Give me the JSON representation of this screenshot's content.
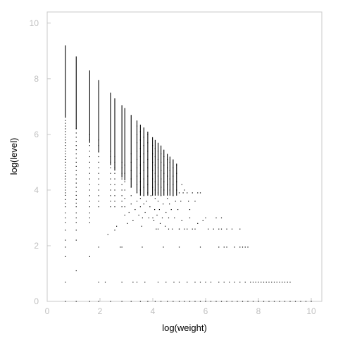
{
  "chart_data": {
    "type": "scatter",
    "title": "",
    "xlabel": "log(weight)",
    "ylabel": "log(level)",
    "xlim": [
      0,
      10.4
    ],
    "ylim": [
      0,
      10.4
    ],
    "xticks": [
      "0",
      "2",
      "4",
      "6",
      "8",
      "10"
    ],
    "yticks": [
      "0",
      "2",
      "4",
      "6",
      "8",
      "10"
    ],
    "grid": false,
    "legend": "none",
    "point_color": "#000000",
    "axis_color": "#c8c8c8",
    "tick_label_color": "#c0c0c0",
    "columns": [
      {
        "x": 0.69,
        "ymax": 9.2
      },
      {
        "x": 1.1,
        "ymax": 8.8
      },
      {
        "x": 1.61,
        "ymax": 8.3
      },
      {
        "x": 1.95,
        "ymax": 7.95
      },
      {
        "x": 2.4,
        "ymax": 7.5
      },
      {
        "x": 2.56,
        "ymax": 7.3
      },
      {
        "x": 2.83,
        "ymax": 7.05
      },
      {
        "x": 2.94,
        "ymax": 6.95
      },
      {
        "x": 3.18,
        "ymax": 6.7
      },
      {
        "x": 3.4,
        "ymax": 6.5
      },
      {
        "x": 3.53,
        "ymax": 6.35
      },
      {
        "x": 3.66,
        "ymax": 6.25
      },
      {
        "x": 3.81,
        "ymax": 6.1
      },
      {
        "x": 3.99,
        "ymax": 5.9
      },
      {
        "x": 4.09,
        "ymax": 5.8
      },
      {
        "x": 4.2,
        "ymax": 5.7
      },
      {
        "x": 4.31,
        "ymax": 5.6
      },
      {
        "x": 4.42,
        "ymax": 5.45
      },
      {
        "x": 4.55,
        "ymax": 5.3
      },
      {
        "x": 4.65,
        "ymax": 5.2
      },
      {
        "x": 4.77,
        "ymax": 5.1
      },
      {
        "x": 4.9,
        "ymax": 4.95
      }
    ],
    "points": [
      [
        0.69,
        0.69
      ],
      [
        0.69,
        1.61
      ],
      [
        0.69,
        1.95
      ],
      [
        0.69,
        2.2
      ],
      [
        0.69,
        2.56
      ],
      [
        0.69,
        2.83
      ],
      [
        0.69,
        3.0
      ],
      [
        0.69,
        3.18
      ],
      [
        0.69,
        3.4
      ],
      [
        0.69,
        3.53
      ],
      [
        0.69,
        3.66
      ],
      [
        0.69,
        3.81
      ],
      [
        0.69,
        3.9
      ],
      [
        0.69,
        4.0
      ],
      [
        0.69,
        4.1
      ],
      [
        0.69,
        4.2
      ],
      [
        0.69,
        4.3
      ],
      [
        0.69,
        4.4
      ],
      [
        0.69,
        4.5
      ],
      [
        0.69,
        4.6
      ],
      [
        0.69,
        4.7
      ],
      [
        0.69,
        4.8
      ],
      [
        0.69,
        4.9
      ],
      [
        0.69,
        5.0
      ],
      [
        0.69,
        5.1
      ],
      [
        0.69,
        5.2
      ],
      [
        0.69,
        5.3
      ],
      [
        0.69,
        5.4
      ],
      [
        0.69,
        5.5
      ],
      [
        0.69,
        5.6
      ],
      [
        0.69,
        5.7
      ],
      [
        0.69,
        5.8
      ],
      [
        0.69,
        5.9
      ],
      [
        0.69,
        6.0
      ],
      [
        0.69,
        6.1
      ],
      [
        0.69,
        6.2
      ],
      [
        0.69,
        6.3
      ],
      [
        0.69,
        6.4
      ],
      [
        0.69,
        6.5
      ],
      [
        1.1,
        1.1
      ],
      [
        1.1,
        2.2
      ],
      [
        1.1,
        2.56
      ],
      [
        1.1,
        2.83
      ],
      [
        1.1,
        3.0
      ],
      [
        1.1,
        3.18
      ],
      [
        1.1,
        3.4
      ],
      [
        1.1,
        3.53
      ],
      [
        1.1,
        3.66
      ],
      [
        1.1,
        3.81
      ],
      [
        1.1,
        3.95
      ],
      [
        1.1,
        4.1
      ],
      [
        1.1,
        4.25
      ],
      [
        1.1,
        4.4
      ],
      [
        1.1,
        4.55
      ],
      [
        1.1,
        4.7
      ],
      [
        1.1,
        4.85
      ],
      [
        1.1,
        5.0
      ],
      [
        1.1,
        5.15
      ],
      [
        1.1,
        5.3
      ],
      [
        1.1,
        5.45
      ],
      [
        1.1,
        5.6
      ],
      [
        1.1,
        5.75
      ],
      [
        1.1,
        5.9
      ],
      [
        1.1,
        6.05
      ],
      [
        1.1,
        6.2
      ],
      [
        1.61,
        1.61
      ],
      [
        1.61,
        2.83
      ],
      [
        1.61,
        3.0
      ],
      [
        1.61,
        3.18
      ],
      [
        1.61,
        3.4
      ],
      [
        1.61,
        3.6
      ],
      [
        1.61,
        3.8
      ],
      [
        1.61,
        4.0
      ],
      [
        1.61,
        4.2
      ],
      [
        1.61,
        4.4
      ],
      [
        1.61,
        4.6
      ],
      [
        1.61,
        4.8
      ],
      [
        1.61,
        5.0
      ],
      [
        1.61,
        5.2
      ],
      [
        1.61,
        5.4
      ],
      [
        1.61,
        5.6
      ],
      [
        1.61,
        5.8
      ],
      [
        1.61,
        6.0
      ],
      [
        1.95,
        1.95
      ],
      [
        1.95,
        0.69
      ],
      [
        1.95,
        3.4
      ],
      [
        1.95,
        3.6
      ],
      [
        1.95,
        3.8
      ],
      [
        1.95,
        4.0
      ],
      [
        1.95,
        4.2
      ],
      [
        1.95,
        4.4
      ],
      [
        1.95,
        4.6
      ],
      [
        1.95,
        4.8
      ],
      [
        1.95,
        5.0
      ],
      [
        1.95,
        5.2
      ],
      [
        1.95,
        5.4
      ],
      [
        1.95,
        5.6
      ],
      [
        1.95,
        5.8
      ],
      [
        2.3,
        2.4
      ],
      [
        2.4,
        3.4
      ],
      [
        2.4,
        3.6
      ],
      [
        2.4,
        3.8
      ],
      [
        2.4,
        4.0
      ],
      [
        2.4,
        4.2
      ],
      [
        2.4,
        4.4
      ],
      [
        2.4,
        4.6
      ],
      [
        2.4,
        4.8
      ],
      [
        2.4,
        5.0
      ],
      [
        2.4,
        5.2
      ],
      [
        2.4,
        5.4
      ],
      [
        2.56,
        2.56
      ],
      [
        2.56,
        3.4
      ],
      [
        2.56,
        3.6
      ],
      [
        2.56,
        3.8
      ],
      [
        2.56,
        4.0
      ],
      [
        2.56,
        4.2
      ],
      [
        2.56,
        4.4
      ],
      [
        2.56,
        4.6
      ],
      [
        2.56,
        4.8
      ],
      [
        2.56,
        5.0
      ],
      [
        2.56,
        5.2
      ],
      [
        2.63,
        2.7
      ],
      [
        2.77,
        1.95
      ],
      [
        2.83,
        3.4
      ],
      [
        2.83,
        3.6
      ],
      [
        2.83,
        3.8
      ],
      [
        2.83,
        4.0
      ],
      [
        2.83,
        4.2
      ],
      [
        2.83,
        4.4
      ],
      [
        2.83,
        4.6
      ],
      [
        2.83,
        4.8
      ],
      [
        2.83,
        5.0
      ],
      [
        2.83,
        1.95
      ],
      [
        2.83,
        0.69
      ],
      [
        2.94,
        3.1
      ],
      [
        2.94,
        3.4
      ],
      [
        2.94,
        3.7
      ],
      [
        2.94,
        4.0
      ],
      [
        2.94,
        4.3
      ],
      [
        2.94,
        4.6
      ],
      [
        2.94,
        4.9
      ],
      [
        3.04,
        2.8
      ],
      [
        3.1,
        3.2
      ],
      [
        3.18,
        3.5
      ],
      [
        3.18,
        3.8
      ],
      [
        3.18,
        4.1
      ],
      [
        3.18,
        4.4
      ],
      [
        3.18,
        4.7
      ],
      [
        3.18,
        5.0
      ],
      [
        3.18,
        5.3
      ],
      [
        3.25,
        2.9
      ],
      [
        3.33,
        3.3
      ],
      [
        3.4,
        3.6
      ],
      [
        3.4,
        3.9
      ],
      [
        3.4,
        4.2
      ],
      [
        3.4,
        4.5
      ],
      [
        3.4,
        4.8
      ],
      [
        3.4,
        5.1
      ],
      [
        3.4,
        5.4
      ],
      [
        3.4,
        5.7
      ],
      [
        3.4,
        6.0
      ],
      [
        3.4,
        6.3
      ],
      [
        3.47,
        3.1
      ],
      [
        3.53,
        3.4
      ],
      [
        3.53,
        3.7
      ],
      [
        3.53,
        4.0
      ],
      [
        3.53,
        4.3
      ],
      [
        3.53,
        4.6
      ],
      [
        3.53,
        4.9
      ],
      [
        3.53,
        5.2
      ],
      [
        3.53,
        5.5
      ],
      [
        3.53,
        5.8
      ],
      [
        3.53,
        6.1
      ],
      [
        3.58,
        2.7
      ],
      [
        3.61,
        3.0
      ],
      [
        3.66,
        3.5
      ],
      [
        3.66,
        3.8
      ],
      [
        3.66,
        4.1
      ],
      [
        3.66,
        4.4
      ],
      [
        3.66,
        4.7
      ],
      [
        3.66,
        5.0
      ],
      [
        3.66,
        5.3
      ],
      [
        3.66,
        5.6
      ],
      [
        3.66,
        5.9
      ],
      [
        3.71,
        3.2
      ],
      [
        3.76,
        3.6
      ],
      [
        3.81,
        3.9
      ],
      [
        3.81,
        4.2
      ],
      [
        3.81,
        4.5
      ],
      [
        3.81,
        4.8
      ],
      [
        3.81,
        5.1
      ],
      [
        3.81,
        5.4
      ],
      [
        3.81,
        5.7
      ],
      [
        3.81,
        6.0
      ],
      [
        3.85,
        3.0
      ],
      [
        3.89,
        3.4
      ],
      [
        3.93,
        3.8
      ],
      [
        3.99,
        4.1
      ],
      [
        3.99,
        4.4
      ],
      [
        3.99,
        4.7
      ],
      [
        3.99,
        5.0
      ],
      [
        3.99,
        5.3
      ],
      [
        3.99,
        5.6
      ],
      [
        4.04,
        2.9
      ],
      [
        4.07,
        3.3
      ],
      [
        4.09,
        3.7
      ],
      [
        4.09,
        4.0
      ],
      [
        4.09,
        4.3
      ],
      [
        4.09,
        4.6
      ],
      [
        4.09,
        4.9
      ],
      [
        4.09,
        5.2
      ],
      [
        4.09,
        5.5
      ],
      [
        4.13,
        2.6
      ],
      [
        4.16,
        3.1
      ],
      [
        4.2,
        3.6
      ],
      [
        4.2,
        3.9
      ],
      [
        4.2,
        4.2
      ],
      [
        4.2,
        4.5
      ],
      [
        4.2,
        4.8
      ],
      [
        4.2,
        5.1
      ],
      [
        4.2,
        5.4
      ],
      [
        4.25,
        3.3
      ],
      [
        4.28,
        2.8
      ],
      [
        4.31,
        3.8
      ],
      [
        4.31,
        4.1
      ],
      [
        4.31,
        4.4
      ],
      [
        4.31,
        4.7
      ],
      [
        4.31,
        5.0
      ],
      [
        4.31,
        5.3
      ],
      [
        4.36,
        3.0
      ],
      [
        4.39,
        3.5
      ],
      [
        4.42,
        4.0
      ],
      [
        4.42,
        4.3
      ],
      [
        4.42,
        4.6
      ],
      [
        4.42,
        4.9
      ],
      [
        4.42,
        5.2
      ],
      [
        4.47,
        2.7
      ],
      [
        4.5,
        3.2
      ],
      [
        4.55,
        3.7
      ],
      [
        4.55,
        4.2
      ],
      [
        4.55,
        4.5
      ],
      [
        4.55,
        4.8
      ],
      [
        4.55,
        5.1
      ],
      [
        4.6,
        3.0
      ],
      [
        4.63,
        3.5
      ],
      [
        4.65,
        4.0
      ],
      [
        4.65,
        4.4
      ],
      [
        4.65,
        4.7
      ],
      [
        4.65,
        5.0
      ],
      [
        4.7,
        3.3
      ],
      [
        4.74,
        2.6
      ],
      [
        4.77,
        3.8
      ],
      [
        4.77,
        4.2
      ],
      [
        4.77,
        4.5
      ],
      [
        4.77,
        4.8
      ],
      [
        4.82,
        3.0
      ],
      [
        4.86,
        3.6
      ],
      [
        4.9,
        4.0
      ],
      [
        4.9,
        4.3
      ],
      [
        4.9,
        4.6
      ],
      [
        4.9,
        4.9
      ],
      [
        4.95,
        3.3
      ],
      [
        5.0,
        3.9
      ],
      [
        5.06,
        3.6
      ],
      [
        5.1,
        4.2
      ],
      [
        5.15,
        3.9
      ],
      [
        5.2,
        4.0
      ],
      [
        5.3,
        3.9
      ],
      [
        5.35,
        3.6
      ],
      [
        5.4,
        3.3
      ],
      [
        5.5,
        3.9
      ],
      [
        5.6,
        3.6
      ],
      [
        5.7,
        3.9
      ],
      [
        5.8,
        3.9
      ],
      [
        5.0,
        2.6
      ],
      [
        5.1,
        2.9
      ],
      [
        5.2,
        2.6
      ],
      [
        5.3,
        2.6
      ],
      [
        5.5,
        2.6
      ],
      [
        5.7,
        2.8
      ],
      [
        5.9,
        2.9
      ],
      [
        6.1,
        2.6
      ],
      [
        6.3,
        2.6
      ],
      [
        6.5,
        2.6
      ],
      [
        6.6,
        2.6
      ],
      [
        6.8,
        2.6
      ],
      [
        7.0,
        2.6
      ],
      [
        7.3,
        2.6
      ],
      [
        4.0,
        3.0
      ],
      [
        4.2,
        2.6
      ],
      [
        4.6,
        2.6
      ],
      [
        5.0,
        2.6
      ],
      [
        5.4,
        3.0
      ],
      [
        5.6,
        2.6
      ],
      [
        6.0,
        3.0
      ],
      [
        6.4,
        3.0
      ],
      [
        6.6,
        3.0
      ],
      [
        3.6,
        1.95
      ],
      [
        4.4,
        1.95
      ],
      [
        5.0,
        1.95
      ],
      [
        5.8,
        1.95
      ],
      [
        6.5,
        1.95
      ],
      [
        6.7,
        1.95
      ],
      [
        6.8,
        1.95
      ],
      [
        7.1,
        1.95
      ],
      [
        7.3,
        1.95
      ],
      [
        7.4,
        1.95
      ],
      [
        7.5,
        1.95
      ],
      [
        7.6,
        1.95
      ],
      [
        2.2,
        0.69
      ],
      [
        3.25,
        0.69
      ],
      [
        3.4,
        0.69
      ],
      [
        3.7,
        0.69
      ],
      [
        4.2,
        0.69
      ],
      [
        4.5,
        0.69
      ],
      [
        4.8,
        0.69
      ],
      [
        5.0,
        0.69
      ],
      [
        5.3,
        0.69
      ],
      [
        5.6,
        0.69
      ],
      [
        5.8,
        0.69
      ],
      [
        6.0,
        0.69
      ],
      [
        6.2,
        0.69
      ],
      [
        6.5,
        0.69
      ],
      [
        6.7,
        0.69
      ],
      [
        6.9,
        0.69
      ],
      [
        7.1,
        0.69
      ],
      [
        7.3,
        0.69
      ],
      [
        7.5,
        0.69
      ],
      [
        7.7,
        0.69
      ],
      [
        7.8,
        0.69
      ],
      [
        7.9,
        0.69
      ],
      [
        8.0,
        0.69
      ],
      [
        8.1,
        0.69
      ],
      [
        8.2,
        0.69
      ],
      [
        8.3,
        0.69
      ],
      [
        8.4,
        0.69
      ],
      [
        8.5,
        0.69
      ],
      [
        8.6,
        0.69
      ],
      [
        8.7,
        0.69
      ],
      [
        8.8,
        0.69
      ],
      [
        8.9,
        0.69
      ],
      [
        9.0,
        0.69
      ],
      [
        9.1,
        0.69
      ],
      [
        9.2,
        0.69
      ],
      [
        0.69,
        0.0
      ],
      [
        1.1,
        0.0
      ],
      [
        1.61,
        0.0
      ],
      [
        1.95,
        0.0
      ],
      [
        2.4,
        0.0
      ],
      [
        2.83,
        0.0
      ],
      [
        3.18,
        0.0
      ],
      [
        3.53,
        0.0
      ],
      [
        3.81,
        0.0
      ],
      [
        4.09,
        0.0
      ],
      [
        4.31,
        0.0
      ],
      [
        4.55,
        0.0
      ],
      [
        4.77,
        0.0
      ],
      [
        5.0,
        0.0
      ],
      [
        5.2,
        0.0
      ],
      [
        5.4,
        0.0
      ],
      [
        5.6,
        0.0
      ],
      [
        5.8,
        0.0
      ],
      [
        6.0,
        0.0
      ],
      [
        6.2,
        0.0
      ],
      [
        6.4,
        0.0
      ],
      [
        6.6,
        0.0
      ],
      [
        6.8,
        0.0
      ],
      [
        7.0,
        0.0
      ],
      [
        7.2,
        0.0
      ],
      [
        7.4,
        0.0
      ],
      [
        7.6,
        0.0
      ],
      [
        7.8,
        0.0
      ],
      [
        8.0,
        0.0
      ],
      [
        8.2,
        0.0
      ],
      [
        8.4,
        0.0
      ],
      [
        8.6,
        0.0
      ],
      [
        8.8,
        0.0
      ],
      [
        9.0,
        0.0
      ],
      [
        9.2,
        0.0
      ],
      [
        9.4,
        0.0
      ],
      [
        9.6,
        0.0
      ],
      [
        9.8,
        0.0
      ],
      [
        10.0,
        0.0
      ]
    ]
  }
}
